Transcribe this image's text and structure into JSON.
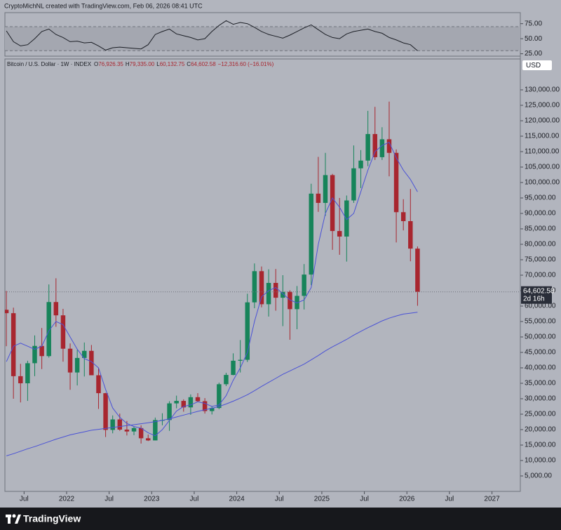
{
  "header": {
    "credit": "CryptoMichNL created with TradingView.com, Feb 06, 2026 08:41 UTC"
  },
  "footer": {
    "brand": "TradingView"
  },
  "chart_data": [
    {
      "type": "candlestick",
      "title": "Bitcoin / U.S. Dollar · 1W · INDEX",
      "header_values": [
        {
          "key": "O",
          "value": "76,926.35"
        },
        {
          "key": "H",
          "value": "79,335.00"
        },
        {
          "key": "L",
          "value": "60,132.75"
        },
        {
          "key": "C",
          "value": "64,602.58"
        }
      ],
      "change": "−12,316.60 (−16.01%)",
      "currency": "USD",
      "last_price": {
        "value": 64602.58,
        "label": "64,602.58"
      },
      "countdown": "2d 16h",
      "up_color": "#17845a",
      "down_color": "#a8262f",
      "x": [
        "2021-04",
        "2021-05",
        "2021-06",
        "2021-07",
        "2021-08",
        "2021-09",
        "2021-10",
        "2021-11",
        "2021-12",
        "2022-01",
        "2022-02",
        "2022-03",
        "2022-04",
        "2022-05",
        "2022-06",
        "2022-07",
        "2022-08",
        "2022-09",
        "2022-10",
        "2022-11",
        "2022-12",
        "2023-01",
        "2023-02",
        "2023-03",
        "2023-04",
        "2023-05",
        "2023-06",
        "2023-07",
        "2023-08",
        "2023-09",
        "2023-10",
        "2023-11",
        "2023-12",
        "2024-01",
        "2024-02",
        "2024-03",
        "2024-04",
        "2024-05",
        "2024-06",
        "2024-07",
        "2024-08",
        "2024-09",
        "2024-10",
        "2024-11",
        "2024-12",
        "2025-01",
        "2025-02",
        "2025-03",
        "2025-04",
        "2025-05",
        "2025-06",
        "2025-07",
        "2025-08",
        "2025-09",
        "2025-10",
        "2025-11",
        "2025-12",
        "2026-01",
        "2026-02"
      ],
      "open": [
        58800,
        57700,
        37300,
        35000,
        41500,
        47100,
        43800,
        61300,
        57000,
        46200,
        38500,
        43200,
        45500,
        37600,
        31800,
        19900,
        23300,
        20000,
        19400,
        20500,
        17200,
        16500,
        23100,
        23100,
        28500,
        29300,
        27200,
        30500,
        29200,
        26000,
        27000,
        34700,
        37700,
        42300,
        42600,
        61200,
        71300,
        60600,
        67500,
        62700,
        64600,
        59000,
        63300,
        70200,
        96400,
        93400,
        102400,
        84300,
        82500,
        94200,
        104600,
        107100,
        115700,
        108200,
        114000,
        109600,
        90400,
        87500,
        78600
      ],
      "high": [
        64900,
        59500,
        41300,
        42300,
        50500,
        52900,
        67000,
        69000,
        59100,
        47900,
        45800,
        48200,
        47400,
        39900,
        31900,
        24600,
        25200,
        22800,
        20900,
        21400,
        18400,
        23900,
        25300,
        29200,
        31000,
        29800,
        31400,
        31800,
        30200,
        27500,
        35200,
        38400,
        44700,
        49000,
        64000,
        73800,
        72800,
        71900,
        72000,
        70000,
        65100,
        66500,
        73600,
        99600,
        108300,
        109600,
        102800,
        95000,
        95800,
        112000,
        110500,
        123200,
        124500,
        117900,
        126200,
        110700,
        94600,
        97900,
        79300
      ],
      "low": [
        47000,
        30000,
        28800,
        29300,
        37300,
        39600,
        43300,
        53300,
        42000,
        32900,
        34300,
        37200,
        37700,
        26700,
        17600,
        18800,
        19600,
        18100,
        18200,
        15500,
        16300,
        16500,
        21400,
        19600,
        26900,
        25800,
        24800,
        28900,
        25200,
        24900,
        26600,
        34100,
        37600,
        38500,
        41900,
        59300,
        59600,
        56600,
        58500,
        53500,
        49100,
        52500,
        58900,
        66800,
        90500,
        89200,
        78200,
        76600,
        74400,
        93400,
        98200,
        105300,
        107300,
        107300,
        102000,
        80600,
        84500,
        74500,
        60100
      ],
      "close": [
        57700,
        37300,
        35000,
        41500,
        47100,
        43800,
        61300,
        57000,
        46200,
        38500,
        43200,
        45500,
        37600,
        31800,
        19900,
        23300,
        20000,
        19400,
        20500,
        17200,
        16500,
        23100,
        23100,
        28500,
        29300,
        27200,
        30500,
        29200,
        26000,
        27000,
        34700,
        37700,
        42300,
        42600,
        61200,
        71300,
        60600,
        67500,
        62700,
        64600,
        59000,
        63300,
        70200,
        96400,
        93400,
        102400,
        84300,
        82500,
        94200,
        104600,
        107100,
        115700,
        108200,
        114000,
        109600,
        90400,
        87500,
        78600,
        64600
      ],
      "overlays": [
        {
          "color": "#4a52d6",
          "values": [
            42000,
            47000,
            48000,
            47000,
            46000,
            47000,
            52000,
            55000,
            54000,
            50000,
            46000,
            43000,
            42000,
            40000,
            33000,
            27000,
            24000,
            22000,
            21000,
            20500,
            19000,
            18000,
            20000,
            23000,
            26000,
            27500,
            28000,
            29000,
            28500,
            27500,
            28000,
            31000,
            36000,
            40000,
            45000,
            55000,
            63000,
            65000,
            66000,
            64000,
            62000,
            61000,
            62000,
            66000,
            80000,
            90000,
            95000,
            92000,
            88000,
            90000,
            97000,
            104000,
            110000,
            112000,
            113000,
            108000,
            104000,
            101000,
            97000
          ]
        },
        {
          "color": "#4a52d6",
          "values": [
            11500,
            12200,
            13000,
            13800,
            14500,
            15300,
            16100,
            16900,
            17600,
            18300,
            18800,
            19300,
            19800,
            20100,
            20400,
            20700,
            21000,
            21300,
            21600,
            21900,
            22200,
            22600,
            23000,
            23500,
            24100,
            24700,
            25300,
            25900,
            26400,
            26900,
            27500,
            28300,
            29200,
            30200,
            31300,
            32600,
            34000,
            35300,
            36600,
            37900,
            39000,
            40100,
            41200,
            42600,
            44000,
            45500,
            46800,
            48000,
            49200,
            50600,
            51800,
            53000,
            54100,
            55200,
            56100,
            56800,
            57400,
            57700,
            58000
          ]
        }
      ],
      "xlim": [
        "2021-04",
        "2027-05"
      ],
      "xticks": [
        {
          "value": "2021-07",
          "label": "Jul"
        },
        {
          "value": "2022-01",
          "label": "2022"
        },
        {
          "value": "2022-07",
          "label": "Jul"
        },
        {
          "value": "2023-01",
          "label": "2023"
        },
        {
          "value": "2023-07",
          "label": "Jul"
        },
        {
          "value": "2024-01",
          "label": "2024"
        },
        {
          "value": "2024-07",
          "label": "Jul"
        },
        {
          "value": "2025-01",
          "label": "2025"
        },
        {
          "value": "2025-07",
          "label": "Jul"
        },
        {
          "value": "2026-01",
          "label": "2026"
        },
        {
          "value": "2026-07",
          "label": "Jul"
        },
        {
          "value": "2027-01",
          "label": "2027"
        }
      ],
      "ylim": [
        0,
        140000
      ],
      "yticks": [
        {
          "value": 5000,
          "label": "5,000.00"
        },
        {
          "value": 10000,
          "label": "10,000.00"
        },
        {
          "value": 15000,
          "label": "15,000.00"
        },
        {
          "value": 20000,
          "label": "20,000.00"
        },
        {
          "value": 25000,
          "label": "25,000.00"
        },
        {
          "value": 30000,
          "label": "30,000.00"
        },
        {
          "value": 35000,
          "label": "35,000.00"
        },
        {
          "value": 40000,
          "label": "40,000.00"
        },
        {
          "value": 45000,
          "label": "45,000.00"
        },
        {
          "value": 50000,
          "label": "50,000.00"
        },
        {
          "value": 55000,
          "label": "55,000.00"
        },
        {
          "value": 60000,
          "label": "60,000.00"
        },
        {
          "value": 65000,
          "label": "65,000.00"
        },
        {
          "value": 70000,
          "label": "70,000.00"
        },
        {
          "value": 75000,
          "label": "75,000.00"
        },
        {
          "value": 80000,
          "label": "80,000.00"
        },
        {
          "value": 85000,
          "label": "85,000.00"
        },
        {
          "value": 90000,
          "label": "90,000.00"
        },
        {
          "value": 95000,
          "label": "95,000.00"
        },
        {
          "value": 100000,
          "label": "100,000.00"
        },
        {
          "value": 105000,
          "label": "105,000.00"
        },
        {
          "value": 110000,
          "label": "110,000.00"
        },
        {
          "value": 115000,
          "label": "115,000.00"
        },
        {
          "value": 120000,
          "label": "120,000.00"
        },
        {
          "value": 125000,
          "label": "125,000.00"
        },
        {
          "value": 130000,
          "label": "130,000.00"
        }
      ],
      "grid": false
    },
    {
      "type": "line",
      "color": "#1c1f26",
      "x": [
        "2021-04",
        "2021-05",
        "2021-06",
        "2021-07",
        "2021-08",
        "2021-09",
        "2021-10",
        "2021-11",
        "2021-12",
        "2022-01",
        "2022-02",
        "2022-03",
        "2022-04",
        "2022-05",
        "2022-06",
        "2022-07",
        "2022-08",
        "2022-09",
        "2022-10",
        "2022-11",
        "2022-12",
        "2023-01",
        "2023-02",
        "2023-03",
        "2023-04",
        "2023-05",
        "2023-06",
        "2023-07",
        "2023-08",
        "2023-09",
        "2023-10",
        "2023-11",
        "2023-12",
        "2024-01",
        "2024-02",
        "2024-03",
        "2024-04",
        "2024-05",
        "2024-06",
        "2024-07",
        "2024-08",
        "2024-09",
        "2024-10",
        "2024-11",
        "2024-12",
        "2025-01",
        "2025-02",
        "2025-03",
        "2025-04",
        "2025-05",
        "2025-06",
        "2025-07",
        "2025-08",
        "2025-09",
        "2025-10",
        "2025-11",
        "2025-12",
        "2026-01",
        "2026-02"
      ],
      "values": [
        63,
        45,
        38,
        40,
        50,
        62,
        66,
        57,
        52,
        45,
        46,
        43,
        44,
        38,
        31,
        35,
        36,
        35,
        34,
        33,
        40,
        57,
        62,
        66,
        58,
        55,
        52,
        48,
        50,
        62,
        72,
        80,
        74,
        77,
        75,
        69,
        62,
        57,
        54,
        51,
        56,
        62,
        68,
        73,
        65,
        57,
        52,
        50,
        58,
        62,
        64,
        66,
        62,
        59,
        52,
        48,
        43,
        40,
        30
      ],
      "bands": [
        30,
        70
      ],
      "xlim": [
        "2021-04",
        "2027-05"
      ],
      "ylim": [
        21,
        91
      ],
      "yticks": [
        {
          "value": 75,
          "label": "75.00"
        },
        {
          "value": 50,
          "label": "50.00"
        },
        {
          "value": 25,
          "label": "25.00"
        }
      ]
    }
  ]
}
